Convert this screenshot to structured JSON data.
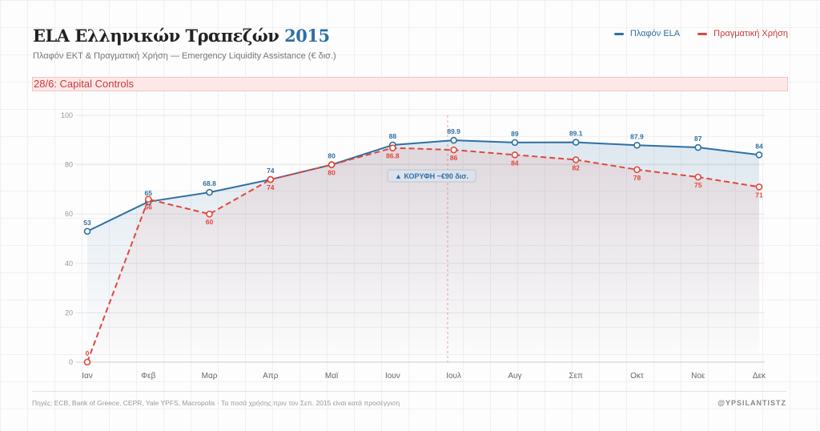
{
  "header": {
    "title": "ELA Ελληνικών Τραπεζών",
    "title_year": "2015",
    "subtitle": "Πλαφόν ΕΚΤ & Πραγματική Χρήση — Emergency Liquidity Assistance (€ δισ.)"
  },
  "banner": "28/6: Capital Controls",
  "footer": {
    "sources": "Πηγές: ECB, Bank of Greece, CEPR, Yale YPFS, Macropolis · Τα ποσά χρήσης πριν τον Σεπ. 2015 είναι κατά προσέγγιση",
    "handle": "@YPSILANTISTZ"
  },
  "chart_data": {
    "type": "line",
    "categories": [
      "Ιαν",
      "Φεβ",
      "Μαρ",
      "Απρ",
      "Μαϊ",
      "Ιουν",
      "Ιουλ",
      "Αυγ",
      "Σεπ",
      "Οκτ",
      "Νοε",
      "Δεκ"
    ],
    "series": [
      {
        "name": "Πλαφόν ELA",
        "color": "#2e6fa3",
        "style": "solid",
        "values": [
          53,
          65,
          68.8,
          74,
          80,
          88,
          89.9,
          89,
          89.1,
          87.9,
          87,
          84
        ],
        "labels": [
          "53",
          "65",
          "68.8",
          "74",
          "80",
          "88",
          "89.9",
          "89",
          "89.1",
          "87.9",
          "87",
          "84"
        ]
      },
      {
        "name": "Πραγματική Χρήση",
        "color": "#e0473c",
        "style": "dashed",
        "values": [
          0,
          66,
          60,
          74,
          80,
          86.8,
          86,
          84,
          82,
          78,
          75,
          71
        ],
        "labels": [
          "0",
          "66",
          "60",
          "74",
          "80",
          "86.8",
          "86",
          "84",
          "82",
          "78",
          "75",
          "71"
        ]
      }
    ],
    "ylim": [
      0,
      100
    ],
    "yticks": [
      0,
      20,
      40,
      60,
      80,
      100
    ],
    "grid": true,
    "legend": "top-right",
    "annotations": [
      {
        "text": "▲ ΚΟΡΥΦΗ ~€90 δισ.",
        "x_month": "Ιουν-Ιουλ"
      }
    ],
    "event_line": {
      "label": "28/6: Capital Controls",
      "position_month": "Ιουν"
    }
  }
}
